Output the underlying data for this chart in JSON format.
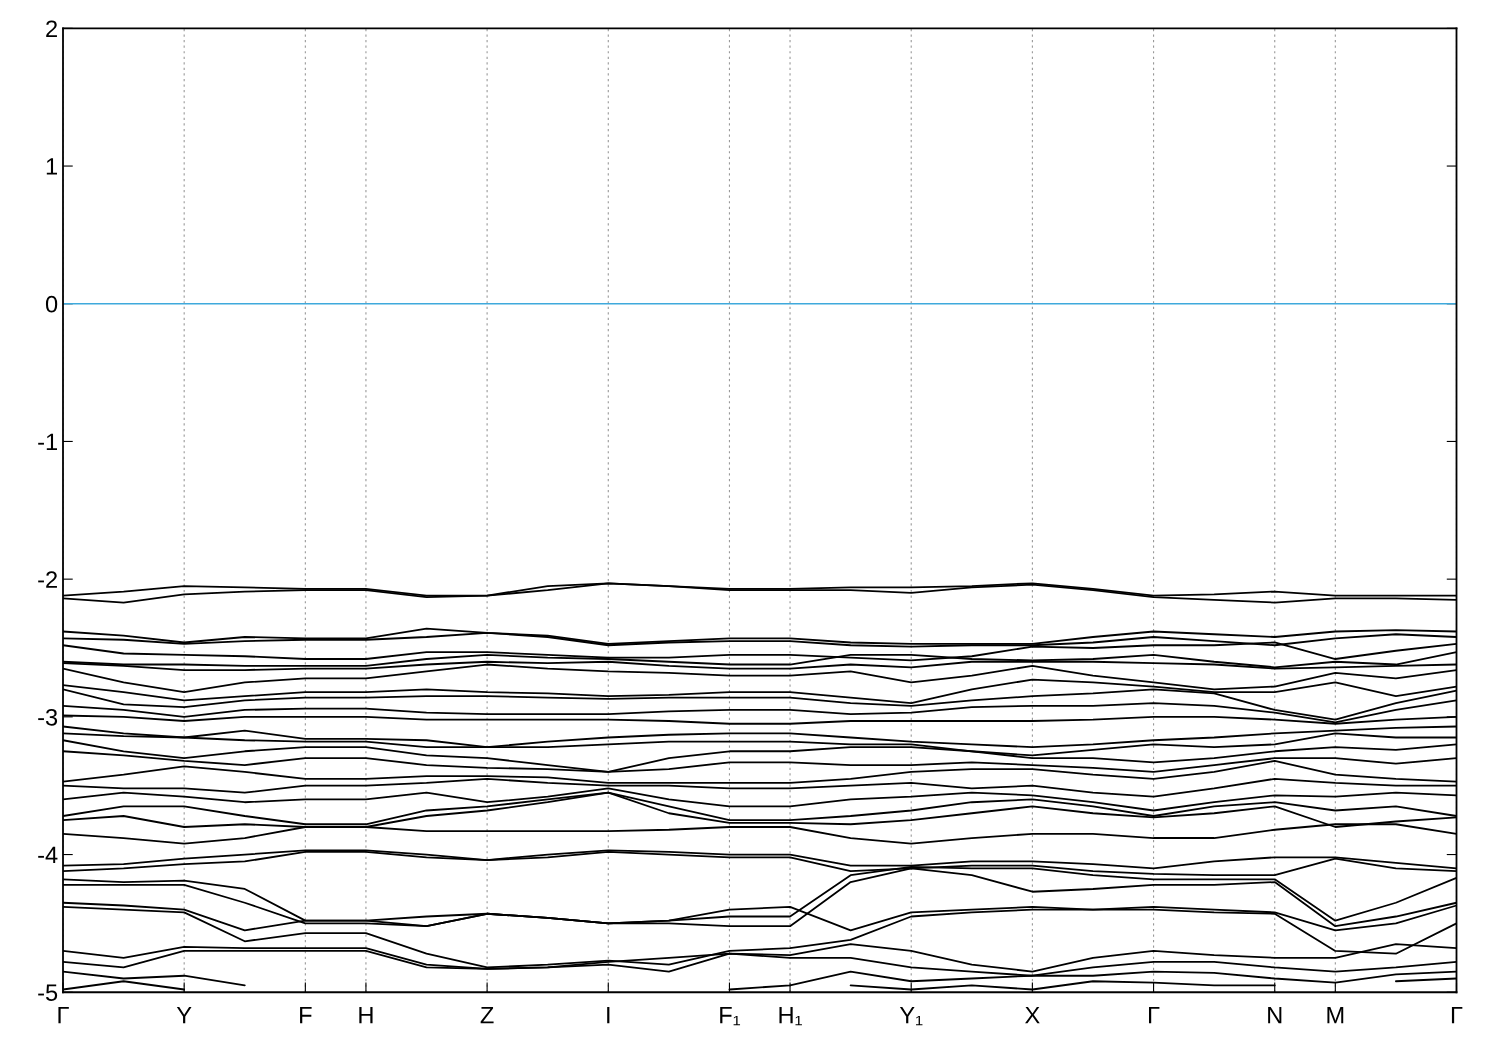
{
  "chart_data": {
    "type": "line",
    "categories": [
      "Γ",
      null,
      "Y",
      null,
      "F",
      "H",
      null,
      "Z",
      null,
      "I",
      null,
      "F₁",
      "H₁",
      null,
      "Y₁",
      null,
      "X",
      null,
      "Γ",
      null,
      "N",
      "M",
      null,
      "Γ"
    ],
    "series": [
      {
        "color": "#000000",
        "values": [
          -2.12,
          -2.09,
          -2.05,
          -2.06,
          -2.07,
          -2.07,
          -2.12,
          -2.12,
          -2.05,
          -2.03,
          -2.05,
          -2.07,
          -2.07,
          -2.06,
          -2.06,
          -2.05,
          -2.03,
          -2.07,
          -2.12,
          -2.11,
          -2.09,
          -2.12,
          -2.12,
          -2.12
        ]
      },
      {
        "color": "#000000",
        "values": [
          -2.14,
          -2.17,
          -2.11,
          -2.09,
          -2.08,
          -2.08,
          -2.13,
          -2.12,
          -2.08,
          -2.03,
          -2.05,
          -2.08,
          -2.08,
          -2.08,
          -2.1,
          -2.06,
          -2.04,
          -2.08,
          -2.13,
          -2.15,
          -2.17,
          -2.14,
          -2.14,
          -2.15
        ]
      },
      {
        "color": "#000000",
        "values": [
          -2.38,
          -2.41,
          -2.46,
          -2.42,
          -2.43,
          -2.43,
          -2.36,
          -2.39,
          -2.41,
          -2.47,
          -2.45,
          -2.43,
          -2.43,
          -2.46,
          -2.47,
          -2.47,
          -2.47,
          -2.42,
          -2.38,
          -2.4,
          -2.42,
          -2.38,
          -2.37,
          -2.38
        ]
      },
      {
        "color": "#000000",
        "values": [
          -2.43,
          -2.44,
          -2.47,
          -2.45,
          -2.44,
          -2.44,
          -2.42,
          -2.39,
          -2.42,
          -2.48,
          -2.46,
          -2.45,
          -2.45,
          -2.48,
          -2.49,
          -2.48,
          -2.48,
          -2.46,
          -2.42,
          -2.45,
          -2.48,
          -2.43,
          -2.4,
          -2.42
        ]
      },
      {
        "color": "#000000",
        "values": [
          -2.48,
          -2.54,
          -2.55,
          -2.56,
          -2.58,
          -2.58,
          -2.53,
          -2.53,
          -2.55,
          -2.57,
          -2.57,
          -2.55,
          -2.55,
          -2.57,
          -2.59,
          -2.56,
          -2.49,
          -2.5,
          -2.48,
          -2.48,
          -2.46,
          -2.58,
          -2.52,
          -2.47
        ]
      },
      {
        "color": "#000000",
        "values": [
          -2.6,
          -2.62,
          -2.62,
          -2.63,
          -2.63,
          -2.63,
          -2.58,
          -2.55,
          -2.57,
          -2.58,
          -2.6,
          -2.62,
          -2.62,
          -2.55,
          -2.55,
          -2.58,
          -2.59,
          -2.58,
          -2.55,
          -2.6,
          -2.64,
          -2.6,
          -2.62,
          -2.53
        ]
      },
      {
        "color": "#000000",
        "values": [
          -2.61,
          -2.63,
          -2.66,
          -2.66,
          -2.65,
          -2.65,
          -2.62,
          -2.6,
          -2.61,
          -2.6,
          -2.63,
          -2.65,
          -2.65,
          -2.62,
          -2.64,
          -2.6,
          -2.6,
          -2.6,
          -2.61,
          -2.62,
          -2.65,
          -2.64,
          -2.63,
          -2.62
        ]
      },
      {
        "color": "#000000",
        "values": [
          -2.65,
          -2.75,
          -2.82,
          -2.75,
          -2.72,
          -2.72,
          -2.67,
          -2.62,
          -2.65,
          -2.67,
          -2.68,
          -2.7,
          -2.7,
          -2.67,
          -2.75,
          -2.7,
          -2.63,
          -2.7,
          -2.75,
          -2.8,
          -2.78,
          -2.68,
          -2.72,
          -2.66
        ]
      },
      {
        "color": "#000000",
        "values": [
          -2.77,
          -2.82,
          -2.88,
          -2.85,
          -2.82,
          -2.82,
          -2.8,
          -2.82,
          -2.83,
          -2.85,
          -2.84,
          -2.82,
          -2.82,
          -2.86,
          -2.9,
          -2.8,
          -2.73,
          -2.75,
          -2.78,
          -2.82,
          -2.82,
          -2.75,
          -2.85,
          -2.78
        ]
      },
      {
        "color": "#000000",
        "values": [
          -2.8,
          -2.91,
          -2.93,
          -2.88,
          -2.86,
          -2.86,
          -2.85,
          -2.85,
          -2.86,
          -2.87,
          -2.86,
          -2.86,
          -2.86,
          -2.9,
          -2.92,
          -2.88,
          -2.85,
          -2.83,
          -2.8,
          -2.83,
          -2.95,
          -3.02,
          -2.9,
          -2.81
        ]
      },
      {
        "color": "#000000",
        "values": [
          -2.92,
          -2.95,
          -3.0,
          -2.95,
          -2.94,
          -2.94,
          -2.97,
          -2.98,
          -2.98,
          -2.98,
          -2.96,
          -2.95,
          -2.95,
          -2.98,
          -2.97,
          -2.93,
          -2.92,
          -2.92,
          -2.9,
          -2.92,
          -2.97,
          -3.04,
          -2.95,
          -2.88
        ]
      },
      {
        "color": "#000000",
        "values": [
          -2.99,
          -3.0,
          -3.03,
          -3.0,
          -3.0,
          -3.0,
          -3.02,
          -3.02,
          -3.02,
          -3.02,
          -3.03,
          -3.05,
          -3.05,
          -3.03,
          -3.03,
          -3.03,
          -3.03,
          -3.02,
          -3.0,
          -3.0,
          -3.02,
          -3.05,
          -3.02,
          -3.0
        ]
      },
      {
        "color": "#000000",
        "values": [
          -3.07,
          -3.12,
          -3.15,
          -3.1,
          -3.16,
          -3.16,
          -3.17,
          -3.22,
          -3.18,
          -3.15,
          -3.13,
          -3.12,
          -3.12,
          -3.15,
          -3.18,
          -3.2,
          -3.22,
          -3.2,
          -3.17,
          -3.15,
          -3.12,
          -3.1,
          -3.08,
          -3.07
        ]
      },
      {
        "color": "#000000",
        "values": [
          -3.12,
          -3.14,
          -3.15,
          -3.17,
          -3.18,
          -3.18,
          -3.22,
          -3.22,
          -3.22,
          -3.2,
          -3.18,
          -3.18,
          -3.18,
          -3.2,
          -3.2,
          -3.25,
          -3.28,
          -3.24,
          -3.2,
          -3.22,
          -3.2,
          -3.12,
          -3.15,
          -3.15
        ]
      },
      {
        "color": "#000000",
        "values": [
          -3.17,
          -3.25,
          -3.3,
          -3.25,
          -3.22,
          -3.22,
          -3.28,
          -3.3,
          -3.35,
          -3.4,
          -3.3,
          -3.25,
          -3.25,
          -3.22,
          -3.22,
          -3.25,
          -3.3,
          -3.3,
          -3.33,
          -3.3,
          -3.25,
          -3.22,
          -3.24,
          -3.2
        ]
      },
      {
        "color": "#000000",
        "values": [
          -3.25,
          -3.28,
          -3.32,
          -3.35,
          -3.3,
          -3.3,
          -3.35,
          -3.37,
          -3.38,
          -3.4,
          -3.38,
          -3.33,
          -3.33,
          -3.35,
          -3.35,
          -3.33,
          -3.35,
          -3.37,
          -3.4,
          -3.35,
          -3.3,
          -3.3,
          -3.34,
          -3.3
        ]
      },
      {
        "color": "#000000",
        "values": [
          -3.47,
          -3.42,
          -3.36,
          -3.4,
          -3.45,
          -3.45,
          -3.43,
          -3.43,
          -3.44,
          -3.48,
          -3.48,
          -3.48,
          -3.48,
          -3.45,
          -3.4,
          -3.38,
          -3.38,
          -3.42,
          -3.45,
          -3.4,
          -3.32,
          -3.42,
          -3.45,
          -3.47
        ]
      },
      {
        "color": "#000000",
        "values": [
          -3.5,
          -3.52,
          -3.52,
          -3.55,
          -3.5,
          -3.5,
          -3.48,
          -3.45,
          -3.48,
          -3.5,
          -3.5,
          -3.52,
          -3.52,
          -3.5,
          -3.48,
          -3.52,
          -3.5,
          -3.55,
          -3.58,
          -3.52,
          -3.45,
          -3.48,
          -3.5,
          -3.5
        ]
      },
      {
        "color": "#000000",
        "values": [
          -3.6,
          -3.55,
          -3.58,
          -3.62,
          -3.6,
          -3.6,
          -3.55,
          -3.62,
          -3.58,
          -3.52,
          -3.6,
          -3.65,
          -3.65,
          -3.6,
          -3.58,
          -3.55,
          -3.57,
          -3.62,
          -3.68,
          -3.62,
          -3.57,
          -3.58,
          -3.55,
          -3.57
        ]
      },
      {
        "color": "#000000",
        "values": [
          -3.72,
          -3.65,
          -3.65,
          -3.72,
          -3.78,
          -3.78,
          -3.68,
          -3.65,
          -3.6,
          -3.55,
          -3.65,
          -3.75,
          -3.75,
          -3.72,
          -3.68,
          -3.62,
          -3.6,
          -3.65,
          -3.72,
          -3.65,
          -3.62,
          -3.68,
          -3.65,
          -3.72
        ]
      },
      {
        "color": "#000000",
        "values": [
          -3.75,
          -3.72,
          -3.8,
          -3.78,
          -3.8,
          -3.8,
          -3.72,
          -3.68,
          -3.62,
          -3.55,
          -3.7,
          -3.77,
          -3.77,
          -3.78,
          -3.75,
          -3.7,
          -3.65,
          -3.7,
          -3.73,
          -3.7,
          -3.65,
          -3.8,
          -3.76,
          -3.73
        ]
      },
      {
        "color": "#000000",
        "values": [
          -3.85,
          -3.88,
          -3.92,
          -3.88,
          -3.8,
          -3.8,
          -3.83,
          -3.83,
          -3.83,
          -3.83,
          -3.82,
          -3.8,
          -3.8,
          -3.88,
          -3.92,
          -3.88,
          -3.85,
          -3.85,
          -3.88,
          -3.88,
          -3.82,
          -3.78,
          -3.78,
          -3.85
        ]
      },
      {
        "color": "#000000",
        "values": [
          -4.08,
          -4.07,
          -4.03,
          -4.0,
          -3.97,
          -3.97,
          -4.0,
          -4.04,
          -4.0,
          -3.97,
          -3.98,
          -4.0,
          -4.0,
          -4.08,
          -4.08,
          -4.05,
          -4.05,
          -4.07,
          -4.1,
          -4.05,
          -4.02,
          -4.02,
          -4.06,
          -4.1
        ]
      },
      {
        "color": "#000000",
        "values": [
          -4.12,
          -4.1,
          -4.07,
          -4.05,
          -3.98,
          -3.98,
          -4.02,
          -4.04,
          -4.02,
          -3.98,
          -4.0,
          -4.02,
          -4.02,
          -4.12,
          -4.1,
          -4.08,
          -4.08,
          -4.12,
          -4.14,
          -4.15,
          -4.15,
          -4.03,
          -4.1,
          -4.12
        ]
      },
      {
        "color": "#000000",
        "values": [
          -4.18,
          -4.2,
          -4.19,
          -4.25,
          -4.48,
          -4.48,
          -4.45,
          -4.43,
          -4.46,
          -4.5,
          -4.48,
          -4.45,
          -4.45,
          -4.15,
          -4.09,
          -4.1,
          -4.1,
          -4.15,
          -4.18,
          -4.18,
          -4.18,
          -4.48,
          -4.35,
          -4.17
        ]
      },
      {
        "color": "#000000",
        "values": [
          -4.22,
          -4.22,
          -4.22,
          -4.35,
          -4.5,
          -4.5,
          -4.52,
          -4.43,
          -4.46,
          -4.5,
          -4.5,
          -4.52,
          -4.52,
          -4.2,
          -4.1,
          -4.15,
          -4.27,
          -4.25,
          -4.22,
          -4.22,
          -4.2,
          -4.52,
          -4.45,
          -4.35
        ]
      },
      {
        "color": "#000000",
        "values": [
          -4.35,
          -4.37,
          -4.4,
          -4.55,
          -4.48,
          -4.48,
          -4.52,
          -4.43,
          -4.46,
          -4.5,
          -4.48,
          -4.4,
          -4.38,
          -4.55,
          -4.42,
          -4.4,
          -4.38,
          -4.4,
          -4.38,
          -4.4,
          -4.42,
          -4.55,
          -4.5,
          -4.37
        ]
      },
      {
        "color": "#000000",
        "values": [
          -4.38,
          -4.4,
          -4.42,
          -4.63,
          -4.57,
          -4.57,
          -4.72,
          -4.82,
          -4.8,
          -4.77,
          -4.8,
          -4.7,
          -4.68,
          -4.62,
          -4.45,
          -4.42,
          -4.4,
          -4.4,
          -4.4,
          -4.42,
          -4.43,
          -4.7,
          -4.72,
          -4.5
        ]
      },
      {
        "color": "#000000",
        "values": [
          -4.7,
          -4.75,
          -4.67,
          -4.68,
          -4.68,
          -4.68,
          -4.8,
          -4.83,
          -4.82,
          -4.78,
          -4.75,
          -4.72,
          -4.73,
          -4.65,
          -4.7,
          -4.8,
          -4.85,
          -4.75,
          -4.7,
          -4.73,
          -4.75,
          -4.75,
          -4.65,
          -4.68
        ]
      },
      {
        "color": "#000000",
        "values": [
          -4.78,
          -4.82,
          -4.7,
          -4.7,
          -4.7,
          -4.7,
          -4.82,
          -4.83,
          -4.82,
          -4.8,
          -4.85,
          -4.72,
          -4.75,
          -4.75,
          -4.82,
          -4.85,
          -4.88,
          -4.82,
          -4.78,
          -4.78,
          -4.82,
          -4.85,
          -4.82,
          -4.78
        ]
      },
      {
        "color": "#000000",
        "values": [
          -4.85,
          -4.9,
          -4.88,
          -4.95,
          null,
          null,
          null,
          null,
          null,
          null,
          null,
          -4.98,
          -4.95,
          -4.85,
          -4.92,
          -4.9,
          -4.88,
          -4.88,
          -4.85,
          -4.86,
          -4.9,
          -4.93,
          -4.87,
          -4.85
        ]
      },
      {
        "color": "#000000",
        "values": [
          -4.98,
          -4.92,
          -4.98,
          null,
          null,
          null,
          null,
          null,
          null,
          null,
          null,
          null,
          null,
          -4.95,
          -4.98,
          -4.95,
          -4.98,
          -4.92,
          -4.93,
          -4.95,
          -4.95,
          null,
          -4.92,
          -4.9
        ]
      }
    ],
    "ylim": [
      -5,
      2
    ],
    "yticks": [
      -5,
      -4,
      -3,
      -2,
      -1,
      0,
      1,
      2
    ],
    "grid": "x",
    "marker": "none",
    "line_style": "solid",
    "ref_lines": [
      {
        "axis": "y",
        "value": 0,
        "color": "#3fa9dc",
        "line_style": "solid"
      }
    ]
  }
}
